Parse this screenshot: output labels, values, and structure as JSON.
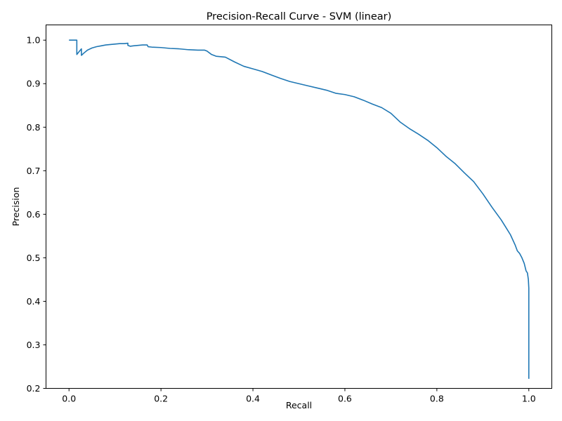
{
  "chart_data": {
    "type": "line",
    "title": "Precision-Recall Curve - SVM (linear)",
    "xlabel": "Recall",
    "ylabel": "Precision",
    "xlim": [
      -0.05,
      1.05
    ],
    "ylim": [
      0.2,
      1.035
    ],
    "xticks": [
      0.0,
      0.2,
      0.4,
      0.6,
      0.8,
      1.0
    ],
    "xtick_labels": [
      "0.0",
      "0.2",
      "0.4",
      "0.6",
      "0.8",
      "1.0"
    ],
    "yticks": [
      0.2,
      0.3,
      0.4,
      0.5,
      0.6,
      0.7,
      0.8,
      0.9,
      1.0
    ],
    "ytick_labels": [
      "0.2",
      "0.3",
      "0.4",
      "0.5",
      "0.6",
      "0.7",
      "0.8",
      "0.9",
      "1.0"
    ],
    "grid": false,
    "color": "#1f77b4",
    "series": [
      {
        "x": [
          0.0,
          0.017,
          0.017,
          0.023,
          0.027,
          0.027,
          0.032,
          0.04,
          0.05,
          0.06,
          0.07,
          0.08,
          0.09,
          0.1,
          0.11,
          0.12,
          0.128,
          0.128,
          0.133,
          0.14,
          0.15,
          0.16,
          0.17,
          0.172,
          0.18,
          0.2,
          0.22,
          0.24,
          0.26,
          0.28,
          0.295,
          0.3,
          0.31,
          0.32,
          0.34,
          0.36,
          0.38,
          0.4,
          0.42,
          0.44,
          0.46,
          0.48,
          0.5,
          0.52,
          0.54,
          0.56,
          0.58,
          0.6,
          0.62,
          0.64,
          0.66,
          0.68,
          0.7,
          0.72,
          0.74,
          0.76,
          0.78,
          0.8,
          0.82,
          0.84,
          0.86,
          0.88,
          0.9,
          0.92,
          0.94,
          0.95,
          0.96,
          0.97,
          0.975,
          0.98,
          0.985,
          0.99,
          0.994,
          0.997,
          0.999,
          1.0,
          1.0,
          1.0
        ],
        "y": [
          1.0,
          1.0,
          0.967,
          0.975,
          0.98,
          0.965,
          0.97,
          0.977,
          0.982,
          0.985,
          0.987,
          0.989,
          0.99,
          0.991,
          0.992,
          0.992,
          0.993,
          0.988,
          0.986,
          0.987,
          0.988,
          0.989,
          0.989,
          0.985,
          0.984,
          0.983,
          0.981,
          0.98,
          0.978,
          0.977,
          0.977,
          0.975,
          0.967,
          0.963,
          0.961,
          0.95,
          0.94,
          0.934,
          0.928,
          0.92,
          0.912,
          0.905,
          0.9,
          0.895,
          0.89,
          0.885,
          0.878,
          0.875,
          0.87,
          0.862,
          0.853,
          0.845,
          0.832,
          0.812,
          0.797,
          0.784,
          0.77,
          0.753,
          0.733,
          0.716,
          0.695,
          0.675,
          0.647,
          0.616,
          0.587,
          0.57,
          0.553,
          0.53,
          0.516,
          0.51,
          0.5,
          0.487,
          0.47,
          0.465,
          0.45,
          0.43,
          0.4,
          0.222
        ]
      }
    ]
  }
}
